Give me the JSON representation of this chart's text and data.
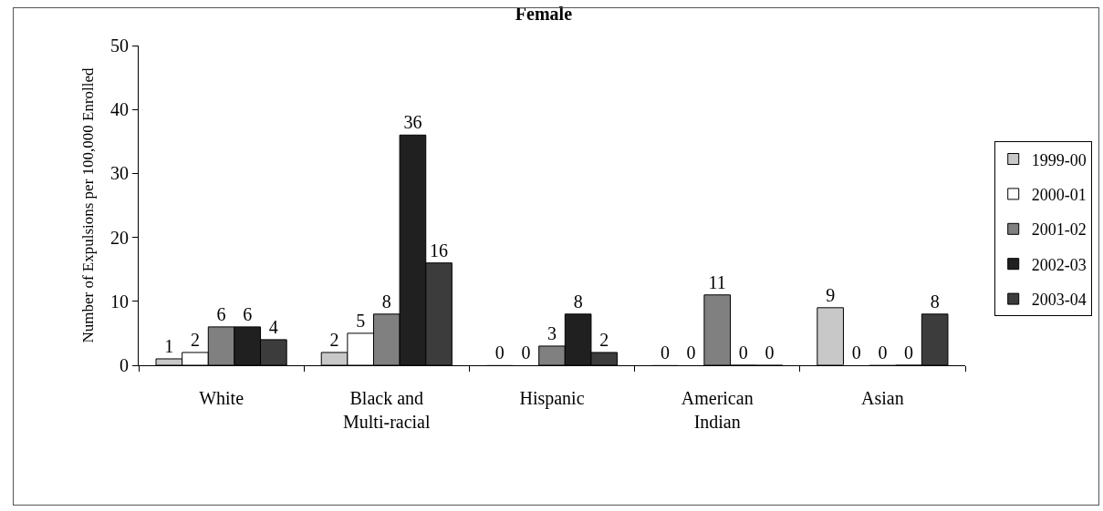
{
  "chart_data": {
    "type": "bar",
    "title": "Female",
    "ylabel": "Number of Expulsions per 100,000 Enrolled",
    "categories": [
      "White",
      "Black and\nMulti-racial",
      "Hispanic",
      "American\nIndian",
      "Asian"
    ],
    "series": [
      {
        "name": "1999-00",
        "color": "#c8c8c8",
        "values": [
          1,
          2,
          0,
          0,
          9
        ]
      },
      {
        "name": "2000-01",
        "color": "#ffffff",
        "values": [
          2,
          5,
          0,
          0,
          0
        ]
      },
      {
        "name": "2001-02",
        "color": "#808080",
        "values": [
          6,
          8,
          3,
          11,
          0
        ]
      },
      {
        "name": "2002-03",
        "color": "#202020",
        "values": [
          6,
          36,
          8,
          0,
          0
        ]
      },
      {
        "name": "2003-04",
        "color": "#3c3c3c",
        "values": [
          4,
          16,
          2,
          0,
          8
        ]
      }
    ],
    "ylim": [
      0,
      50
    ],
    "yticks": [
      0,
      10,
      20,
      30,
      40,
      50
    ],
    "grid": false,
    "legend": "right",
    "data_labels": true
  }
}
